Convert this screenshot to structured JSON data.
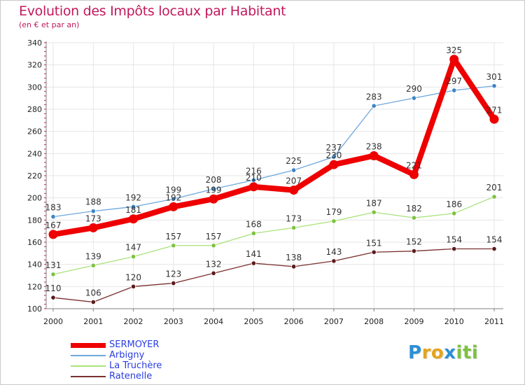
{
  "header": {
    "title": "Evolution des Impôts locaux par Habitant",
    "subtitle": "(en € et par an)"
  },
  "colors": {
    "title": "#c2185b",
    "axis": "#808080",
    "grid": "#e6e6e6",
    "tick_minor": "#c2185b",
    "legend_text": "#2b3ee0"
  },
  "chart_data": {
    "type": "line",
    "title": "Evolution des Impôts locaux par Habitant",
    "subtitle": "(en € et par an)",
    "xlabel": "",
    "ylabel": "",
    "x": [
      "2000",
      "2001",
      "2002",
      "2003",
      "2004",
      "2005",
      "2006",
      "2007",
      "2008",
      "2009",
      "2010",
      "2011"
    ],
    "ylim": [
      100,
      340
    ],
    "yticks": [
      100,
      120,
      140,
      160,
      180,
      200,
      220,
      240,
      260,
      280,
      300,
      320,
      340
    ],
    "grid": true,
    "legend_position": "bottom-left",
    "series": [
      {
        "name": "SERMOYER",
        "color": "#ee0000",
        "point_color": "#ee0000",
        "values": [
          167,
          173,
          181,
          192,
          199,
          210,
          207,
          230,
          238,
          221,
          325,
          271
        ]
      },
      {
        "name": "Arbigny",
        "color": "#6fa8dc",
        "point_color": "#3d85c6",
        "values": [
          183,
          188,
          192,
          199,
          208,
          216,
          225,
          237,
          283,
          290,
          297,
          301
        ]
      },
      {
        "name": "La Truchère",
        "color": "#a9e27a",
        "point_color": "#7dc242",
        "values": [
          131,
          139,
          147,
          157,
          157,
          168,
          173,
          179,
          187,
          182,
          186,
          201
        ]
      },
      {
        "name": "Ratenelle",
        "color": "#7b3030",
        "point_color": "#5c1a1a",
        "values": [
          110,
          106,
          120,
          123,
          132,
          141,
          138,
          143,
          151,
          152,
          154,
          154
        ]
      }
    ]
  },
  "branding": {
    "letters": [
      "P",
      "r",
      "o",
      "x",
      "i",
      "t",
      "i"
    ],
    "colors": [
      "#2a8fd6",
      "#e4a41c",
      "#e4a41c",
      "#2a8fd6",
      "#7cc242",
      "#7cc242",
      "#7cc242"
    ]
  }
}
